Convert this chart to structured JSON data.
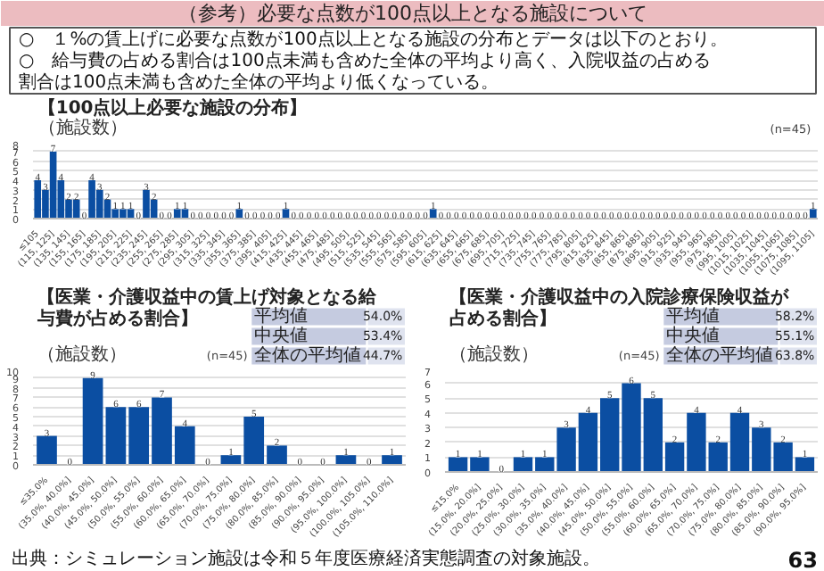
{
  "chart_data": [
    {
      "type": "other",
      "title": "（参考）必要な点数が100点以上となる施設について",
      "annotations": [
        "○　１%の賃上げに必要な点数が100点以上となる施設の分布とデータは以下のとおり。",
        "○　給与費の占める割合は100点未満も含めた全体の平均より高く、入院収益の占める割合は100点未満も含めた全体の平均より低くなっている。",
        "出典：シミュレーション施設は令和５年度医療経済実態調査の対象施設。",
        "63"
      ]
    },
    {
      "type": "bar",
      "title": "【100点以上必要な施設の分布】",
      "ylabel": "（施設数）",
      "annotations": [
        "(n=45)"
      ],
      "color": "#0b4ea2",
      "ylim": [
        0,
        8
      ],
      "yticks": [
        0,
        1,
        2,
        3,
        4,
        5,
        6,
        7,
        8
      ],
      "grid": "y",
      "data_labels": true,
      "categories": [
        "≤105",
        null,
        "(115, 125]",
        null,
        "(135, 145]",
        null,
        "(155, 165]",
        null,
        "(175, 185]",
        null,
        "(195, 205]",
        null,
        "(215, 225]",
        null,
        "(235, 245]",
        null,
        "(255, 265]",
        null,
        "(275, 285]",
        null,
        "(295, 305]",
        null,
        "(315, 325]",
        null,
        "(335, 345]",
        null,
        "(355, 365]",
        null,
        "(375, 385]",
        null,
        "(395, 405]",
        null,
        "(415, 425]",
        null,
        "(435, 445]",
        null,
        "(455, 465]",
        null,
        "(475, 485]",
        null,
        "(495, 505]",
        null,
        "(515, 525]",
        null,
        "(535, 545]",
        null,
        "(555, 565]",
        null,
        "(575, 585]",
        null,
        "(595, 605]",
        null,
        "(615, 625]",
        null,
        "(635, 645]",
        null,
        "(655, 665]",
        null,
        "(675, 685]",
        null,
        "(695, 705]",
        null,
        "(715, 725]",
        null,
        "(735, 745]",
        null,
        "(755, 765]",
        null,
        "(775, 785]",
        null,
        "(795, 805]",
        null,
        "(815, 825]",
        null,
        "(835, 845]",
        null,
        "(855, 865]",
        null,
        "(875, 885]",
        null,
        "(895, 905]",
        null,
        "(915, 925]",
        null,
        "(935, 945]",
        null,
        "(955, 965]",
        null,
        "(975, 985]",
        null,
        "(995, 1005]",
        null,
        "(1015, 1025]",
        null,
        "(1035, 1045]",
        null,
        "(1055, 1065]",
        null,
        "(1075, 1085]",
        null,
        "(1095, 1105]"
      ],
      "values": [
        4,
        3,
        7,
        4,
        2,
        2,
        0,
        4,
        3,
        2,
        1,
        1,
        1,
        0,
        3,
        2,
        0,
        0,
        1,
        1,
        0,
        0,
        0,
        0,
        0,
        0,
        1,
        0,
        0,
        0,
        0,
        0,
        1,
        0,
        0,
        0,
        0,
        0,
        0,
        0,
        0,
        0,
        0,
        0,
        0,
        0,
        0,
        0,
        0,
        0,
        0,
        1,
        0,
        0,
        0,
        0,
        0,
        0,
        0,
        0,
        0,
        0,
        0,
        0,
        0,
        0,
        0,
        0,
        0,
        0,
        0,
        0,
        0,
        0,
        0,
        0,
        0,
        0,
        0,
        0,
        0,
        0,
        0,
        0,
        0,
        0,
        0,
        0,
        0,
        0,
        0,
        0,
        0,
        0,
        0,
        0,
        0,
        0,
        0,
        0,
        1
      ]
    },
    {
      "type": "bar",
      "title": "【医業・介護収益中の賃上げ対象となる給与費が占める割合】",
      "ylabel": "（施設数）",
      "annotations": [
        "(n=45)",
        "平均値",
        "54.0%",
        "中央値",
        "53.4%",
        "全体の平均値",
        "44.7%"
      ],
      "color": "#0b4ea2",
      "ylim": [
        0,
        10
      ],
      "yticks": [
        0,
        1,
        2,
        3,
        4,
        5,
        6,
        7,
        8,
        9,
        10
      ],
      "grid": "y",
      "data_labels": true,
      "categories": [
        "≤35.0%",
        "(35.0%, 40.0%]",
        "(40.0%, 45.0%]",
        "(45.0%, 50.0%]",
        "(50.0%, 55.0%]",
        "(55.0%, 60.0%]",
        "(60.0%, 65.0%]",
        "(65.0%, 70.0%]",
        "(70.0%, 75.0%]",
        "(75.0%, 80.0%]",
        "(80.0%, 85.0%]",
        "(85.0%, 90.0%]",
        "(90.0%, 95.0%]",
        "(95.0%, 100.0%]",
        "(100.0%, 105.0%]",
        "(105.0%, 110.0%]"
      ],
      "values": [
        3,
        0,
        9,
        6,
        6,
        7,
        4,
        0,
        1,
        5,
        2,
        0,
        0,
        1,
        0,
        1
      ]
    },
    {
      "type": "bar",
      "title": "【医業・介護収益中の入院診療保険収益が占める割合】",
      "ylabel": "（施設数）",
      "annotations": [
        "(n=45)",
        "平均値",
        "58.2%",
        "中央値",
        "55.1%",
        "全体の平均値",
        "63.8%"
      ],
      "color": "#0b4ea2",
      "ylim": [
        0,
        7
      ],
      "yticks": [
        0,
        1,
        2,
        3,
        4,
        5,
        6,
        7
      ],
      "grid": "y",
      "data_labels": true,
      "categories": [
        "≤15.0%",
        "(15.0%, 20.0%]",
        "(20.0%, 25.0%]",
        "(25.0%, 30.0%]",
        "(30.0%, 35.0%]",
        "(35.0%, 40.0%]",
        "(40.0%, 45.0%]",
        "(45.0%, 50.0%]",
        "(50.0%, 55.0%]",
        "(55.0%, 60.0%]",
        "(60.0%, 65.0%]",
        "(65.0%, 70.0%]",
        "(70.0%, 75.0%]",
        "(75.0%, 80.0%]",
        "(80.0%, 85.0%]",
        "(85.0%, 90.0%]",
        "(90.0%, 95.0%]"
      ],
      "values": [
        1,
        1,
        0,
        1,
        1,
        3,
        4,
        5,
        6,
        5,
        2,
        4,
        2,
        4,
        3,
        2,
        1
      ]
    }
  ]
}
